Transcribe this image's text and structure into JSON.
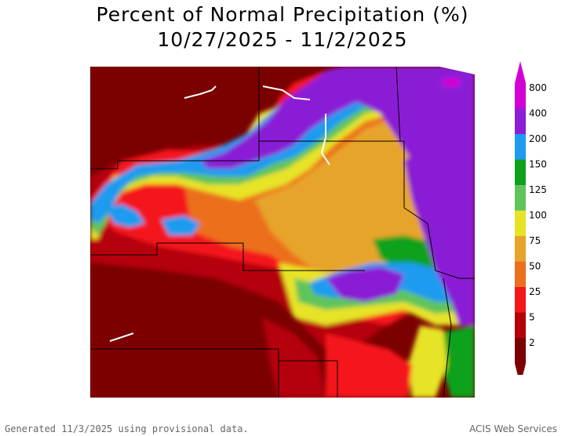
{
  "title": {
    "line1": "Percent of Normal Precipitation (%)",
    "line2": "10/27/2025 - 11/2/2025"
  },
  "legend": {
    "labels": [
      "800",
      "400",
      "200",
      "150",
      "125",
      "100",
      "75",
      "50",
      "25",
      "5",
      "2"
    ],
    "colors": [
      "#d300d3",
      "#8b1fd6",
      "#1f9bf0",
      "#0ea11c",
      "#61c45c",
      "#e7e325",
      "#e7a42c",
      "#ec6f1d",
      "#f4171a",
      "#b5000a",
      "#7b0000"
    ]
  },
  "map_colors": {
    "very_dry": "#7b0000",
    "dry": "#b5000a",
    "red": "#f4171a",
    "orange": "#ec6f1d",
    "tan": "#e7a42c",
    "yellow": "#e7e325",
    "lightgreen": "#61c45c",
    "green": "#0ea11c",
    "blue": "#1f9bf0",
    "purple": "#8b1fd6",
    "magenta": "#d300d3"
  },
  "footer": {
    "left": "Generated 11/3/2025 using provisional data.",
    "right": "ACIS Web Services"
  }
}
